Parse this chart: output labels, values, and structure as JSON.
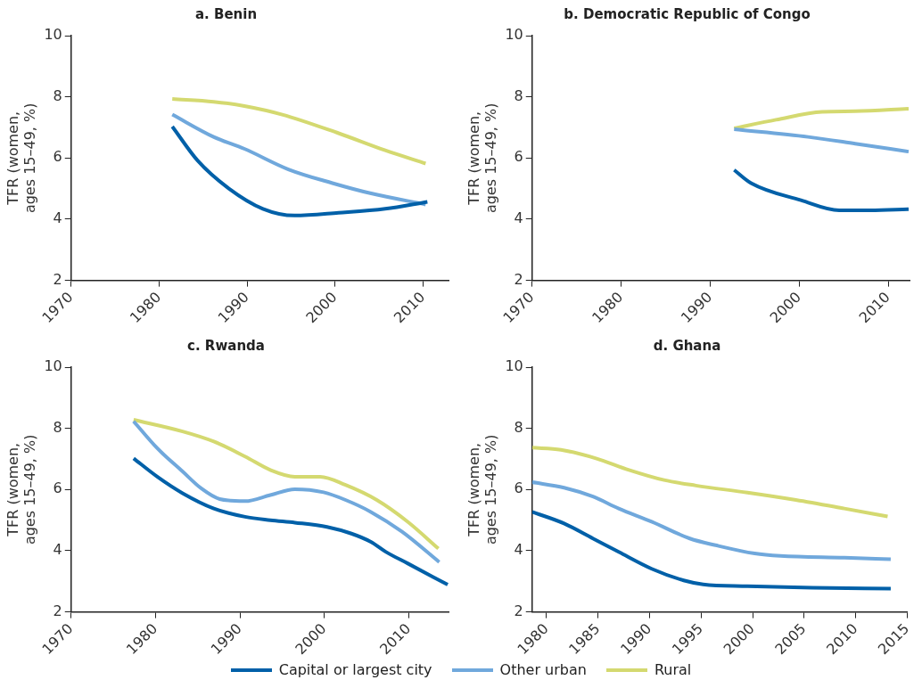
{
  "chart_data": [
    {
      "type": "line",
      "title": "a. Benin",
      "ylabel": "TFR (women, ages 15–49, %)",
      "xlim": [
        1970,
        2012.9
      ],
      "xticks": [
        1970,
        1980,
        1990,
        2000,
        2010
      ],
      "ylim": [
        2,
        10
      ],
      "yticks": [
        2,
        4,
        6,
        8,
        10
      ],
      "grid": false,
      "legend": false,
      "marker": "none",
      "line_style": "solid",
      "series": [
        {
          "color": "#0060a8",
          "x": [
            1981.5,
            1984.4,
            1987.9,
            1991.8,
            1995.4,
            2000.4,
            2005.7,
            2010.5
          ],
          "values": [
            7.03,
            5.91,
            5.01,
            4.34,
            4.12,
            4.21,
            4.34,
            4.57
          ]
        },
        {
          "color": "#70a8dc",
          "x": [
            1981.5,
            1986.2,
            1989.7,
            1994.7,
            1999.7,
            2004,
            2010.3
          ],
          "values": [
            7.42,
            6.69,
            6.3,
            5.63,
            5.18,
            4.85,
            4.48
          ]
        },
        {
          "color": "#d4d970",
          "x": [
            1981.5,
            1986.2,
            1989.7,
            1994,
            2000.4,
            2005.7,
            2010.3
          ],
          "values": [
            7.93,
            7.84,
            7.7,
            7.42,
            6.81,
            6.25,
            5.82
          ]
        }
      ]
    },
    {
      "type": "line",
      "title": "b. Democratic Republic of Congo",
      "ylabel": "TFR (women, ages 15–49, %)",
      "xlim": [
        1970,
        2012.4
      ],
      "xticks": [
        1970,
        1980,
        1990,
        2000,
        2010
      ],
      "ylim": [
        2,
        10
      ],
      "yticks": [
        2,
        4,
        6,
        8,
        10
      ],
      "grid": false,
      "legend": false,
      "marker": "none",
      "line_style": "solid",
      "series": [
        {
          "color": "#0060a8",
          "x": [
            1992.7,
            1994.6,
            2000.2,
            2004.5,
            2008,
            2012.3
          ],
          "values": [
            5.61,
            5.18,
            4.62,
            4.29,
            4.29,
            4.33
          ]
        },
        {
          "color": "#70a8dc",
          "x": [
            1992.7,
            2001,
            2006.3,
            2012.3
          ],
          "values": [
            6.94,
            6.69,
            6.47,
            6.21
          ]
        },
        {
          "color": "#d4d970",
          "x": [
            1992.7,
            1997.4,
            2002.6,
            2006.3,
            2012.3
          ],
          "values": [
            6.97,
            7.25,
            7.51,
            7.53,
            7.61
          ]
        }
      ]
    },
    {
      "type": "line",
      "title": "c. Rwanda",
      "ylabel": "TFR (women, ages 15–49, %)",
      "xlim": [
        1970,
        2014.7
      ],
      "xticks": [
        1970,
        1980,
        1990,
        2000,
        2010
      ],
      "ylim": [
        2,
        10
      ],
      "yticks": [
        2,
        4,
        6,
        8,
        10
      ],
      "grid": false,
      "legend": false,
      "marker": "none",
      "line_style": "solid",
      "series": [
        {
          "color": "#0060a8",
          "x": [
            1977.4,
            1980.2,
            1983.2,
            1986.9,
            1990.6,
            1993.6,
            1996.5,
            2000.3,
            2003.2,
            2005.5,
            2007.3,
            2009.9,
            2014.6
          ],
          "values": [
            7.02,
            6.42,
            5.88,
            5.38,
            5.11,
            5.0,
            4.92,
            4.78,
            4.56,
            4.29,
            3.96,
            3.58,
            2.89
          ]
        },
        {
          "color": "#70a8dc",
          "x": [
            1977.4,
            1980.2,
            1983.2,
            1985.4,
            1987.6,
            1990.6,
            1993.6,
            1996.5,
            1999.9,
            2002.5,
            2005.5,
            2009.2,
            2013.6
          ],
          "values": [
            8.23,
            7.35,
            6.59,
            6.04,
            5.69,
            5.62,
            5.82,
            6.01,
            5.91,
            5.66,
            5.27,
            4.62,
            3.63
          ]
        },
        {
          "color": "#d4d970",
          "x": [
            1977.4,
            1983.2,
            1986.9,
            1990.6,
            1993.6,
            1996.5,
            1999.5,
            2002.5,
            2006.2,
            2009.9,
            2013.5
          ],
          "values": [
            8.28,
            7.9,
            7.57,
            7.08,
            6.64,
            6.42,
            6.42,
            6.15,
            5.66,
            4.94,
            4.07
          ]
        }
      ]
    },
    {
      "type": "line",
      "title": "d. Ghana",
      "ylabel": "TFR (women, ages 15–49, %)",
      "xlim": [
        1978.6,
        2015
      ],
      "xticks": [
        1980,
        1985,
        1990,
        1995,
        2000,
        2005,
        2010,
        2015
      ],
      "ylim": [
        2,
        10
      ],
      "yticks": [
        2,
        4,
        6,
        8,
        10
      ],
      "grid": false,
      "legend": "bottom",
      "marker": "none",
      "line_style": "solid",
      "series": [
        {
          "name": "Capital or largest city",
          "color": "#0060a8",
          "x": [
            1978.6,
            1981.7,
            1984.5,
            1987,
            1990.2,
            1993.3,
            1995.2,
            1999.5,
            2005.8,
            2013.4
          ],
          "values": [
            5.27,
            4.89,
            4.4,
            3.96,
            3.41,
            3.03,
            2.9,
            2.84,
            2.79,
            2.76
          ]
        },
        {
          "name": "Other urban",
          "color": "#70a8dc",
          "x": [
            1978.6,
            1981.7,
            1984.5,
            1987,
            1990.2,
            1993.9,
            1996.4,
            2000.2,
            2002.7,
            2008.9,
            2013.4
          ],
          "values": [
            6.24,
            6.06,
            5.77,
            5.38,
            4.95,
            4.4,
            4.18,
            3.91,
            3.83,
            3.77,
            3.72
          ]
        },
        {
          "name": "Rural",
          "color": "#d4d970",
          "x": [
            1978.6,
            1981.4,
            1984.8,
            1988,
            1991.4,
            1994.5,
            1999.5,
            2004.2,
            2008.9,
            2013.1
          ],
          "values": [
            7.37,
            7.3,
            7.02,
            6.64,
            6.31,
            6.13,
            5.9,
            5.66,
            5.38,
            5.12
          ]
        }
      ]
    }
  ]
}
